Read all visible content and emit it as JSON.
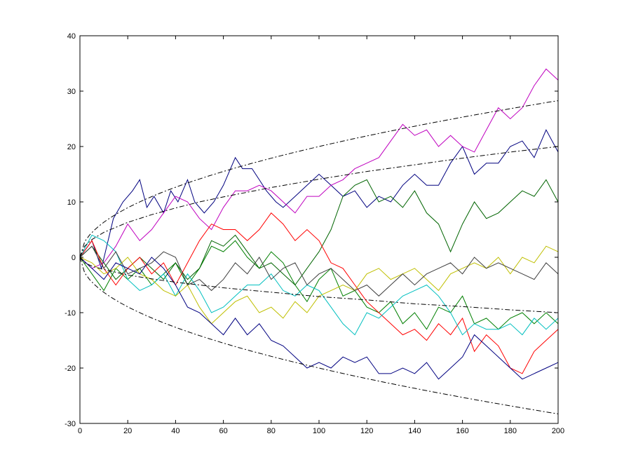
{
  "chart_data": {
    "type": "line",
    "title": "",
    "xlabel": "",
    "ylabel": "",
    "xlim": [
      0,
      200
    ],
    "ylim": [
      -30,
      40
    ],
    "grid": false,
    "legend": "none",
    "x_ticks": [
      0,
      20,
      40,
      60,
      80,
      100,
      120,
      140,
      160,
      180,
      200
    ],
    "x_tick_labels": [
      "0",
      "20",
      "40",
      "60",
      "80",
      "100",
      "120",
      "140",
      "160",
      "180",
      "200"
    ],
    "y_ticks": [
      -30,
      -20,
      -10,
      0,
      10,
      20,
      30,
      40
    ],
    "y_tick_labels": [
      "-30",
      "-20",
      "-10",
      "0",
      "10",
      "20",
      "30",
      "40"
    ],
    "series": [
      {
        "color": "#00007f",
        "style": "solid",
        "x": [
          0,
          5,
          9,
          14,
          18,
          22,
          25,
          28,
          31,
          35,
          38,
          41,
          45,
          48,
          52,
          56,
          60,
          65,
          68,
          72,
          75,
          78,
          82,
          85,
          90,
          95,
          100,
          105,
          110,
          115,
          120,
          125,
          130,
          135,
          140,
          145,
          150,
          155,
          160,
          165,
          170,
          175,
          180,
          185,
          190,
          195,
          200
        ],
        "y": [
          0,
          3,
          -2,
          7,
          10,
          12,
          14,
          9,
          11,
          8,
          12,
          10,
          14,
          10,
          8,
          10,
          13,
          18,
          16,
          16,
          14,
          12,
          10,
          9,
          11,
          13,
          15,
          13,
          11,
          12,
          9,
          11,
          10,
          13,
          15,
          13,
          13,
          17,
          20,
          15,
          17,
          17,
          20,
          21,
          18,
          23,
          19
        ]
      },
      {
        "color": "#bf00bf",
        "style": "solid",
        "x": [
          0,
          5,
          10,
          15,
          20,
          25,
          30,
          35,
          40,
          45,
          50,
          55,
          60,
          65,
          70,
          75,
          80,
          85,
          90,
          95,
          100,
          105,
          110,
          115,
          120,
          125,
          130,
          135,
          140,
          145,
          150,
          155,
          160,
          165,
          170,
          175,
          180,
          185,
          190,
          195,
          200
        ],
        "y": [
          0,
          -2,
          -1,
          2,
          6,
          3,
          5,
          8,
          11,
          10,
          7,
          5,
          9,
          12,
          12,
          13,
          12,
          10,
          8,
          11,
          11,
          13,
          14,
          16,
          17,
          18,
          21,
          24,
          22,
          23,
          20,
          22,
          20,
          19,
          23,
          27,
          25,
          27,
          31,
          34,
          32
        ]
      },
      {
        "color": "#007f00",
        "style": "solid",
        "x": [
          0,
          5,
          10,
          15,
          20,
          25,
          30,
          35,
          40,
          45,
          50,
          55,
          60,
          65,
          70,
          75,
          80,
          85,
          90,
          95,
          100,
          105,
          110,
          115,
          120,
          125,
          130,
          135,
          140,
          145,
          150,
          155,
          160,
          165,
          170,
          175,
          180,
          185,
          190,
          195,
          200
        ],
        "y": [
          0,
          -3,
          -6,
          -2,
          -4,
          -2,
          -5,
          -3,
          -1,
          -5,
          -2,
          2,
          1,
          3,
          0,
          -2,
          1,
          -1,
          -5,
          -8,
          -4,
          -2,
          -7,
          -6,
          -9,
          -10,
          -8,
          -12,
          -10,
          -13,
          -9,
          -10,
          -7,
          -12,
          -11,
          -13,
          -11,
          -10,
          -12,
          -10,
          -12
        ]
      },
      {
        "color": "#006400",
        "style": "solid",
        "x": [
          0,
          5,
          10,
          15,
          20,
          25,
          30,
          35,
          40,
          45,
          50,
          55,
          60,
          65,
          70,
          75,
          80,
          85,
          90,
          95,
          100,
          105,
          110,
          115,
          120,
          125,
          130,
          135,
          140,
          145,
          150,
          155,
          160,
          165,
          170,
          175,
          180,
          185,
          190,
          195,
          200
        ],
        "y": [
          0,
          2,
          -1,
          -4,
          -2,
          0,
          -2,
          -4,
          -1,
          -4,
          -2,
          3,
          2,
          4,
          1,
          -2,
          -1,
          -3,
          -5,
          -2,
          1,
          5,
          11,
          13,
          14,
          10,
          11,
          9,
          12,
          8,
          6,
          1,
          6,
          10,
          7,
          8,
          10,
          12,
          11,
          14,
          10
        ]
      },
      {
        "color": "#ff0000",
        "style": "solid",
        "x": [
          0,
          5,
          10,
          15,
          20,
          25,
          30,
          35,
          40,
          45,
          50,
          55,
          60,
          65,
          70,
          75,
          80,
          85,
          90,
          95,
          100,
          105,
          110,
          115,
          120,
          125,
          130,
          135,
          140,
          145,
          150,
          155,
          160,
          165,
          170,
          175,
          180,
          185,
          190,
          195,
          200
        ],
        "y": [
          0,
          3,
          -2,
          -5,
          -2,
          0,
          -3,
          -1,
          -5,
          -1,
          3,
          6,
          5,
          5,
          3,
          5,
          8,
          6,
          3,
          5,
          3,
          -1,
          -2,
          -5,
          -8,
          -10,
          -12,
          -14,
          -13,
          -15,
          -12,
          -14,
          -11,
          -17,
          -14,
          -16,
          -20,
          -21,
          -17,
          -15,
          -13
        ]
      },
      {
        "color": "#00bfbf",
        "style": "solid",
        "x": [
          0,
          5,
          10,
          15,
          20,
          25,
          30,
          35,
          40,
          45,
          50,
          55,
          60,
          65,
          70,
          75,
          80,
          85,
          90,
          95,
          100,
          105,
          110,
          115,
          120,
          125,
          130,
          135,
          140,
          145,
          150,
          155,
          160,
          165,
          170,
          175,
          180,
          185,
          190,
          195,
          200
        ],
        "y": [
          0,
          4,
          3,
          1,
          -4,
          -6,
          -5,
          -3,
          -7,
          -3,
          -6,
          -10,
          -9,
          -7,
          -5,
          -5,
          -3,
          -6,
          -7,
          -5,
          -6,
          -9,
          -12,
          -14,
          -10,
          -11,
          -9,
          -7,
          -6,
          -5,
          -7,
          -10,
          -14,
          -12,
          -13,
          -13,
          -12,
          -14,
          -11,
          -13,
          -11
        ]
      },
      {
        "color": "#bfbf00",
        "style": "solid",
        "x": [
          0,
          5,
          10,
          15,
          20,
          25,
          30,
          35,
          40,
          45,
          50,
          55,
          60,
          65,
          70,
          75,
          80,
          85,
          90,
          95,
          100,
          105,
          110,
          115,
          120,
          125,
          130,
          135,
          140,
          145,
          150,
          155,
          160,
          165,
          170,
          175,
          180,
          185,
          190,
          195,
          200
        ],
        "y": [
          0,
          -1,
          -3,
          -2,
          0,
          -3,
          -4,
          -6,
          -7,
          -5,
          -9,
          -12,
          -10,
          -8,
          -7,
          -10,
          -9,
          -11,
          -8,
          -10,
          -7,
          -6,
          -5,
          -6,
          -3,
          -2,
          -4,
          -3,
          -2,
          -4,
          -6,
          -3,
          -2,
          -1,
          -2,
          0,
          -3,
          0,
          -1,
          2,
          1
        ]
      },
      {
        "color": "#3f3f3f",
        "style": "solid",
        "x": [
          0,
          5,
          10,
          15,
          20,
          25,
          30,
          35,
          40,
          45,
          50,
          55,
          60,
          65,
          70,
          75,
          80,
          85,
          90,
          95,
          100,
          105,
          110,
          115,
          120,
          125,
          130,
          135,
          140,
          145,
          150,
          155,
          160,
          165,
          170,
          175,
          180,
          185,
          190,
          195,
          200
        ],
        "y": [
          0,
          2,
          -2,
          1,
          -3,
          -2,
          -1,
          1,
          0,
          -5,
          -4,
          -6,
          -4,
          -1,
          -3,
          0,
          -4,
          -2,
          -1,
          -5,
          -3,
          -2,
          -4,
          -6,
          -5,
          -7,
          -5,
          -3,
          -5,
          -3,
          -2,
          -1,
          -3,
          0,
          -2,
          -1,
          -2,
          -3,
          -4,
          -1,
          -3
        ]
      },
      {
        "color": "#000080",
        "style": "solid",
        "x": [
          0,
          5,
          10,
          15,
          20,
          25,
          30,
          35,
          40,
          45,
          50,
          55,
          60,
          65,
          70,
          75,
          80,
          85,
          90,
          95,
          100,
          105,
          110,
          115,
          120,
          125,
          130,
          135,
          140,
          145,
          150,
          155,
          160,
          165,
          170,
          175,
          180,
          185,
          190,
          195,
          200
        ],
        "y": [
          0,
          -2,
          -4,
          -1,
          -2,
          -3,
          0,
          -2,
          -5,
          -9,
          -10,
          -12,
          -14,
          -11,
          -14,
          -12,
          -15,
          -16,
          -18,
          -20,
          -19,
          -20,
          -18,
          -19,
          -18,
          -21,
          -21,
          -20,
          -21,
          -19,
          -22,
          -20,
          -18,
          -14,
          -16,
          -18,
          -20,
          -22,
          -21,
          -20,
          -19
        ]
      },
      {
        "color": "#000000",
        "style": "dashdot",
        "x": [
          0,
          2,
          5,
          10,
          20,
          30,
          40,
          50,
          60,
          80,
          100,
          120,
          140,
          160,
          180,
          200
        ],
        "y": [
          0,
          2,
          3.2,
          4.5,
          6.3,
          7.7,
          8.9,
          10,
          10.9,
          12.6,
          14.1,
          15.5,
          16.7,
          17.9,
          19,
          20
        ]
      },
      {
        "color": "#000000",
        "style": "dashdot",
        "x": [
          0,
          2,
          5,
          10,
          20,
          30,
          40,
          50,
          60,
          80,
          100,
          120,
          140,
          160,
          180,
          200
        ],
        "y": [
          0,
          -1,
          -1.6,
          -2.2,
          -3.2,
          -3.9,
          -4.5,
          -5,
          -5.5,
          -6.3,
          -7.1,
          -7.7,
          -8.4,
          -8.9,
          -9.5,
          -10
        ]
      }
    ],
    "envelopes": [
      {
        "color": "#000000",
        "style": "dashdot",
        "coef": 2,
        "label_note": "upper outer"
      }
    ]
  }
}
